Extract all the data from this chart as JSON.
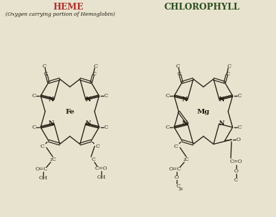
{
  "bg_color": "#e8e3ce",
  "title_heme": "HEME",
  "title_chlorophyll": "CHLOROPHYLL",
  "subtitle": "(Oxygen carrying portion of Hemoglobin)",
  "heme_color": "#b03030",
  "chlorophyll_color": "#2d5022",
  "bond_color": "#2a2018",
  "text_color": "#1e1a10",
  "figsize": [
    4.03,
    3.17
  ],
  "dpi": 100
}
